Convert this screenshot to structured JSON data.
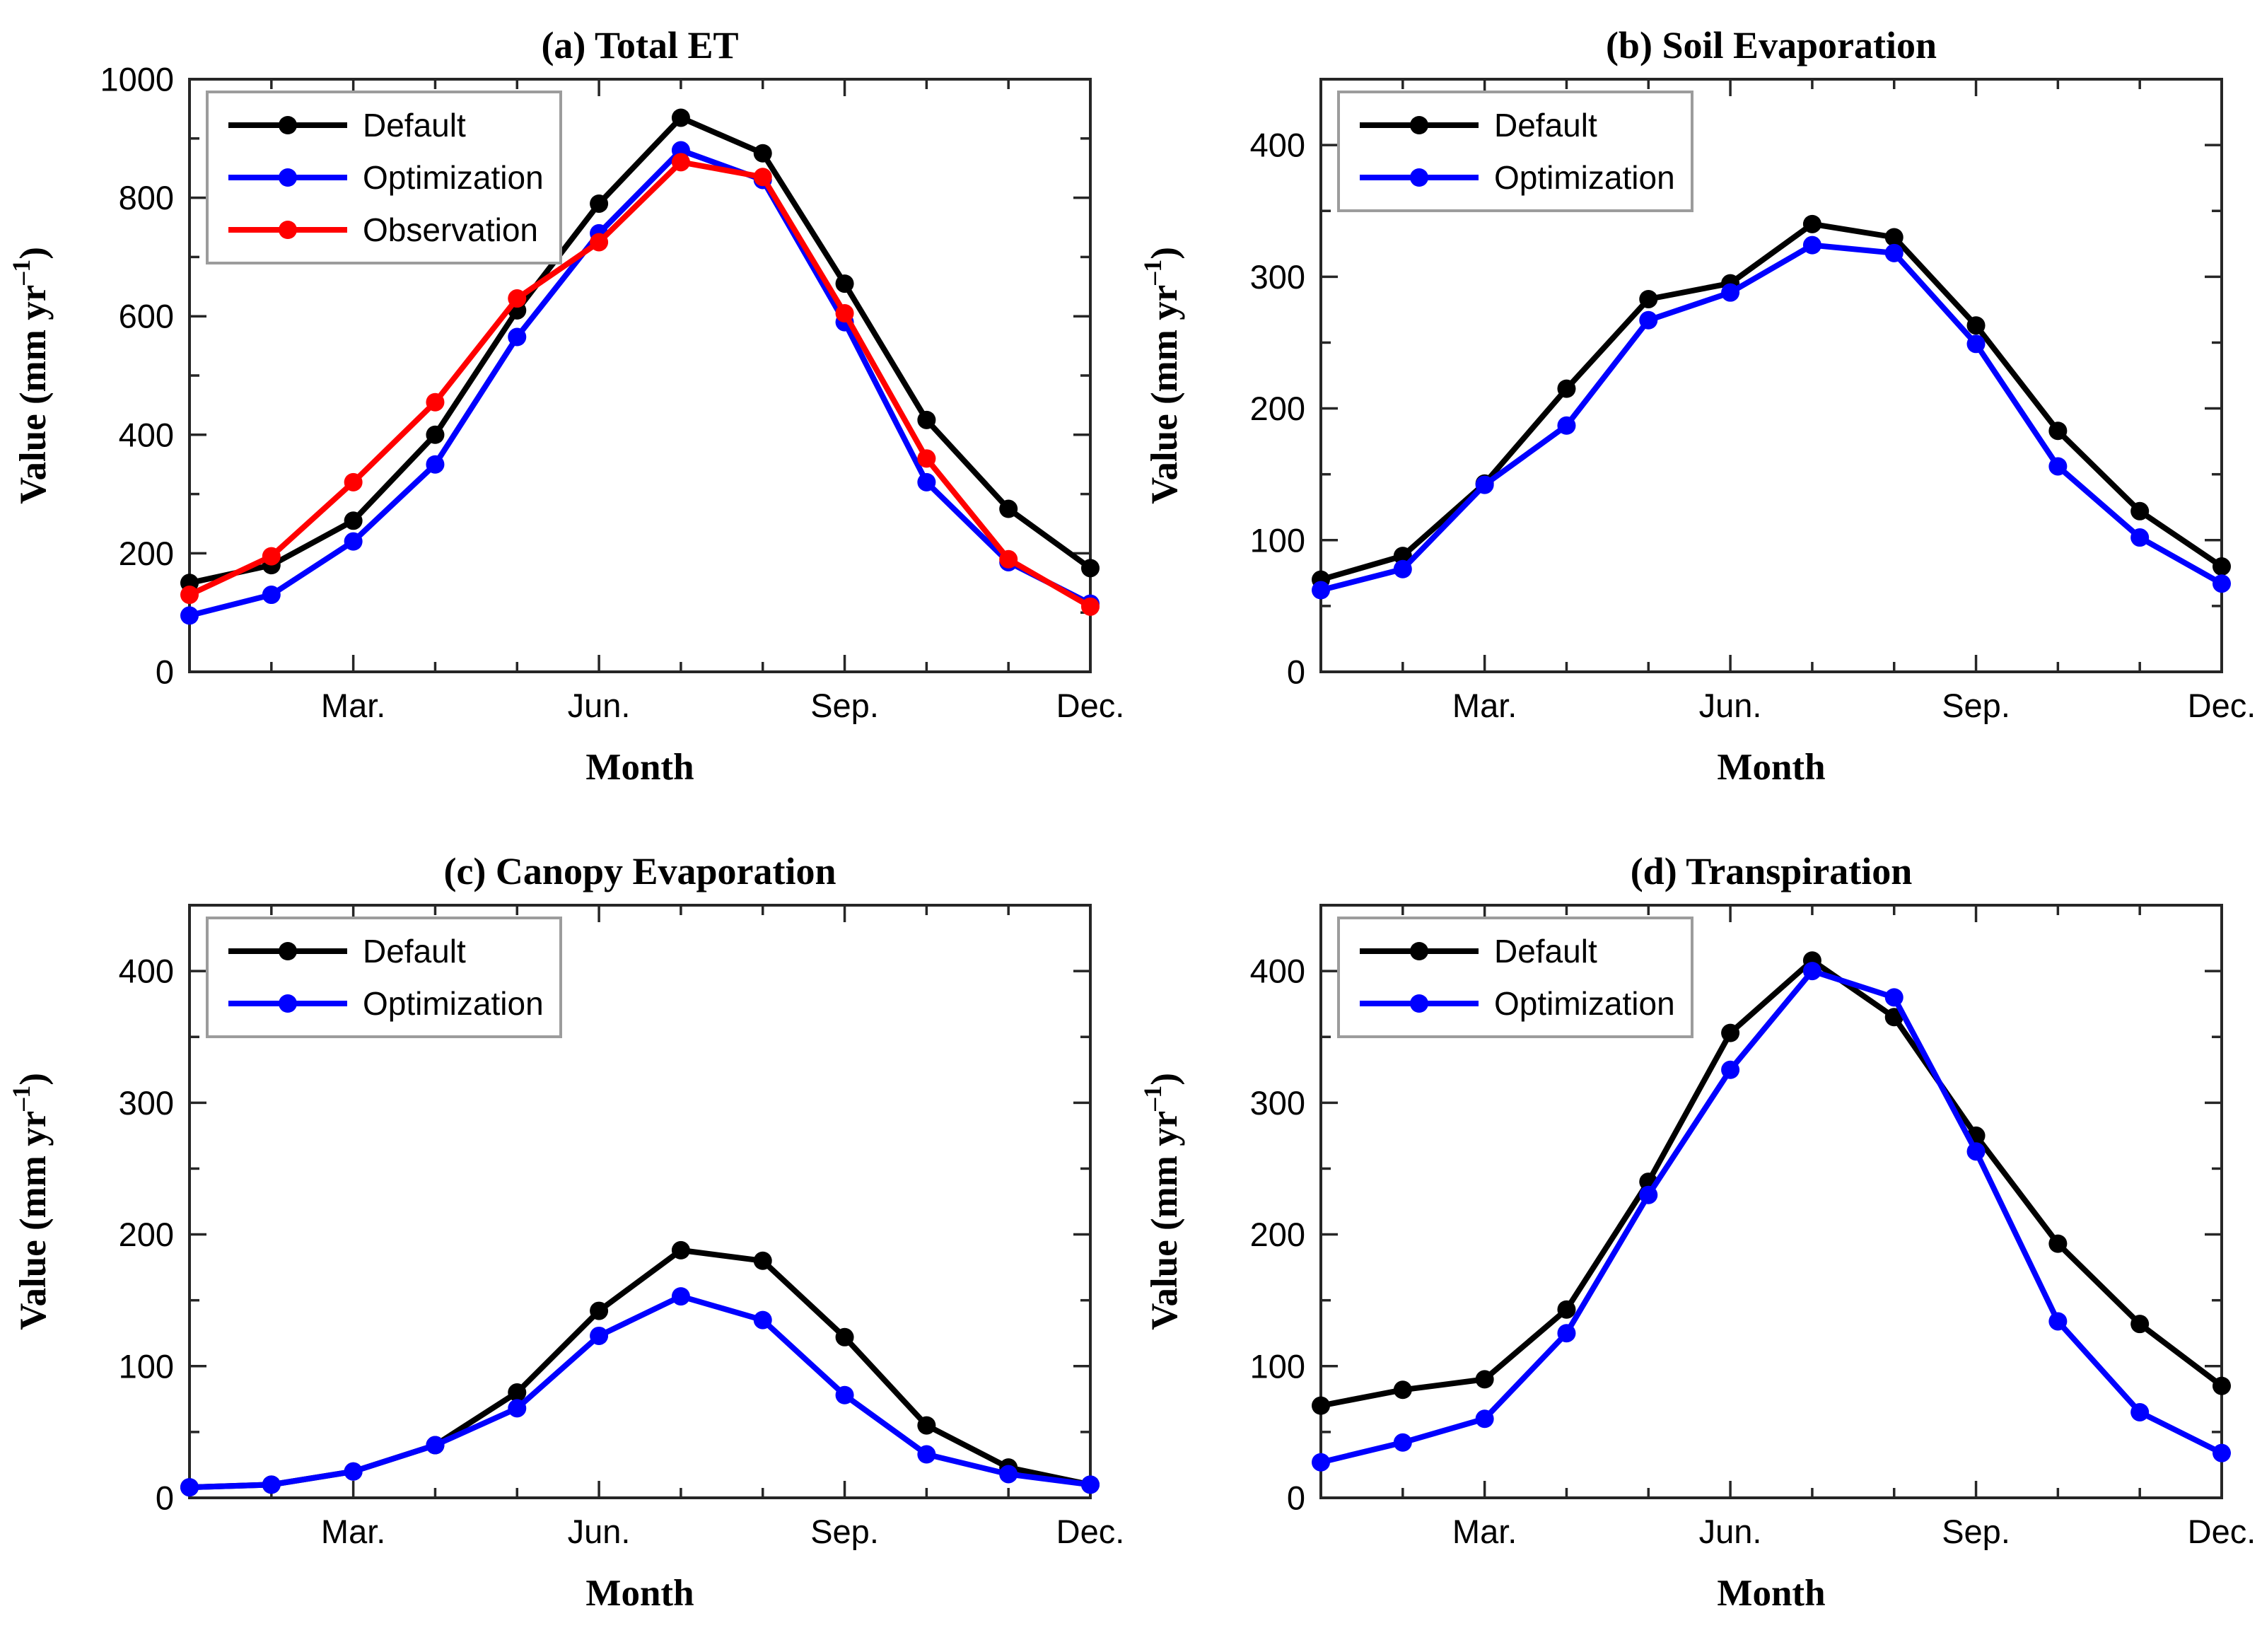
{
  "figure": {
    "background": "#ffffff",
    "axis_color": "#262626",
    "legend_border_color": "#9c9c9c",
    "series_colors": {
      "Default": "#000000",
      "Optimization": "#0000ff",
      "Observation": "#ff0000"
    }
  },
  "chart_data": [
    {
      "id": "a",
      "type": "line",
      "title": "(a) Total ET",
      "xlabel": "Month",
      "ylabel": "Value (mm yr⁻¹)",
      "x": [
        1,
        2,
        3,
        4,
        5,
        6,
        7,
        8,
        9,
        10,
        11,
        12
      ],
      "xlim": [
        1,
        12
      ],
      "xtick_positions": [
        3,
        6,
        9,
        12
      ],
      "xtick_labels": [
        "Mar.",
        "Jun.",
        "Sep.",
        "Dec."
      ],
      "xtick_minor_positions": [
        1,
        2,
        4,
        5,
        7,
        8,
        10,
        11
      ],
      "ylim": [
        0,
        1000
      ],
      "yticks": [
        0,
        200,
        400,
        600,
        800,
        1000
      ],
      "ytick_minor_step": 100,
      "grid": false,
      "legend_position": "top-left",
      "legend": [
        "Default",
        "Optimization",
        "Observation"
      ],
      "series": [
        {
          "name": "Default",
          "color": "#000000",
          "values": [
            150,
            180,
            255,
            400,
            610,
            790,
            935,
            875,
            655,
            425,
            275,
            175
          ]
        },
        {
          "name": "Optimization",
          "color": "#0000ff",
          "values": [
            95,
            130,
            220,
            350,
            565,
            740,
            880,
            830,
            590,
            320,
            185,
            115
          ]
        },
        {
          "name": "Observation",
          "color": "#ff0000",
          "values": [
            130,
            195,
            320,
            455,
            630,
            725,
            860,
            835,
            605,
            360,
            190,
            110
          ]
        }
      ]
    },
    {
      "id": "b",
      "type": "line",
      "title": "(b) Soil Evaporation",
      "xlabel": "Month",
      "ylabel": "Value (mm yr⁻¹)",
      "x": [
        1,
        2,
        3,
        4,
        5,
        6,
        7,
        8,
        9,
        10,
        11,
        12
      ],
      "xlim": [
        1,
        12
      ],
      "xtick_positions": [
        3,
        6,
        9,
        12
      ],
      "xtick_labels": [
        "Mar.",
        "Jun.",
        "Sep.",
        "Dec."
      ],
      "xtick_minor_positions": [
        1,
        2,
        4,
        5,
        7,
        8,
        10,
        11
      ],
      "ylim": [
        0,
        450
      ],
      "yticks": [
        0,
        100,
        200,
        300,
        400
      ],
      "ytick_minor_step": 50,
      "grid": false,
      "legend_position": "top-left",
      "legend": [
        "Default",
        "Optimization"
      ],
      "series": [
        {
          "name": "Default",
          "color": "#000000",
          "values": [
            70,
            88,
            143,
            215,
            283,
            295,
            340,
            330,
            263,
            183,
            122,
            80
          ]
        },
        {
          "name": "Optimization",
          "color": "#0000ff",
          "values": [
            62,
            78,
            142,
            187,
            267,
            288,
            324,
            318,
            249,
            156,
            102,
            67
          ]
        }
      ]
    },
    {
      "id": "c",
      "type": "line",
      "title": "(c) Canopy Evaporation",
      "xlabel": "Month",
      "ylabel": "Value (mm yr⁻¹)",
      "x": [
        1,
        2,
        3,
        4,
        5,
        6,
        7,
        8,
        9,
        10,
        11,
        12
      ],
      "xlim": [
        1,
        12
      ],
      "xtick_positions": [
        3,
        6,
        9,
        12
      ],
      "xtick_labels": [
        "Mar.",
        "Jun.",
        "Sep.",
        "Dec."
      ],
      "xtick_minor_positions": [
        1,
        2,
        4,
        5,
        7,
        8,
        10,
        11
      ],
      "ylim": [
        0,
        450
      ],
      "yticks": [
        0,
        100,
        200,
        300,
        400
      ],
      "ytick_minor_step": 50,
      "grid": false,
      "legend_position": "top-left",
      "legend": [
        "Default",
        "Optimization"
      ],
      "series": [
        {
          "name": "Default",
          "color": "#000000",
          "values": [
            8,
            10,
            20,
            40,
            80,
            142,
            188,
            180,
            122,
            55,
            23,
            10
          ]
        },
        {
          "name": "Optimization",
          "color": "#0000ff",
          "values": [
            8,
            10,
            20,
            40,
            68,
            123,
            153,
            135,
            78,
            33,
            18,
            10
          ]
        }
      ]
    },
    {
      "id": "d",
      "type": "line",
      "title": "(d) Transpiration",
      "xlabel": "Month",
      "ylabel": "Value (mm yr⁻¹)",
      "x": [
        1,
        2,
        3,
        4,
        5,
        6,
        7,
        8,
        9,
        10,
        11,
        12
      ],
      "xlim": [
        1,
        12
      ],
      "xtick_positions": [
        3,
        6,
        9,
        12
      ],
      "xtick_labels": [
        "Mar.",
        "Jun.",
        "Sep.",
        "Dec."
      ],
      "xtick_minor_positions": [
        1,
        2,
        4,
        5,
        7,
        8,
        10,
        11
      ],
      "ylim": [
        0,
        450
      ],
      "yticks": [
        0,
        100,
        200,
        300,
        400
      ],
      "ytick_minor_step": 50,
      "grid": false,
      "legend_position": "top-left",
      "legend": [
        "Default",
        "Optimization"
      ],
      "series": [
        {
          "name": "Default",
          "color": "#000000",
          "values": [
            70,
            82,
            90,
            143,
            240,
            353,
            408,
            365,
            275,
            193,
            132,
            85
          ]
        },
        {
          "name": "Optimization",
          "color": "#0000ff",
          "values": [
            27,
            42,
            60,
            125,
            230,
            325,
            400,
            380,
            263,
            134,
            65,
            34
          ]
        }
      ]
    }
  ]
}
